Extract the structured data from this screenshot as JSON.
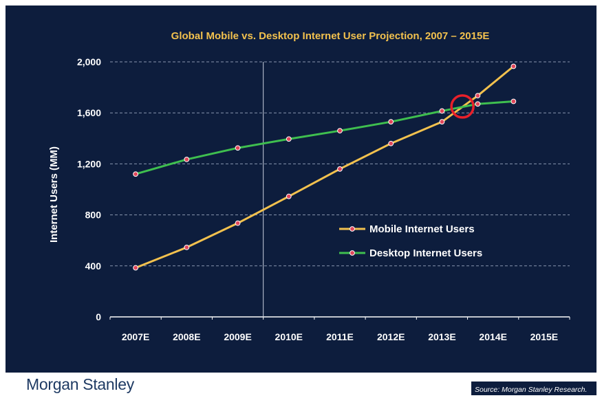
{
  "brand": "Morgan Stanley",
  "source": "Source: Morgan Stanley Research.",
  "colors": {
    "background": "#0d1d3d",
    "title": "#f2c14e",
    "mobile": "#f2c14e",
    "desktop": "#3fbf4f",
    "marker": "#e0475b",
    "highlight": "#e8202a",
    "grid": "#8a97b0",
    "text": "#ffffff"
  },
  "chart_data": {
    "type": "line",
    "title": "Global Mobile vs. Desktop Internet User Projection, 2007 – 2015E",
    "xlabel": "",
    "ylabel": "Internet Users (MM)",
    "categories": [
      "2007E",
      "2008E",
      "2009E",
      "2010E",
      "2011E",
      "2012E",
      "2013E",
      "2014E",
      "2015E"
    ],
    "ylim": [
      0,
      2000
    ],
    "yticks": [
      0,
      400,
      800,
      1200,
      1600,
      2000
    ],
    "ytick_labels": [
      "0",
      "400",
      "800",
      "1,200",
      "1,600",
      "2,000"
    ],
    "grid": true,
    "legend_position": "center-right",
    "series": [
      {
        "name": "Mobile Internet Users",
        "color": "#f2c14e",
        "points": [
          [
            0,
            385
          ],
          [
            1,
            545
          ],
          [
            2,
            735
          ],
          [
            3,
            945
          ],
          [
            4,
            1160
          ],
          [
            5,
            1360
          ],
          [
            6,
            1530
          ],
          [
            6.7,
            1735
          ],
          [
            7.4,
            1965
          ]
        ]
      },
      {
        "name": "Desktop Internet Users",
        "color": "#3fbf4f",
        "points": [
          [
            0,
            1120
          ],
          [
            1,
            1235
          ],
          [
            2,
            1325
          ],
          [
            3,
            1395
          ],
          [
            4,
            1460
          ],
          [
            5,
            1530
          ],
          [
            6,
            1615
          ],
          [
            6.7,
            1670
          ],
          [
            7.4,
            1690
          ]
        ]
      }
    ],
    "annotations": [
      {
        "type": "circle",
        "x_index": 6.4,
        "y": 1650,
        "note": "crossover"
      },
      {
        "type": "vline",
        "x_index": 2.5
      }
    ]
  }
}
